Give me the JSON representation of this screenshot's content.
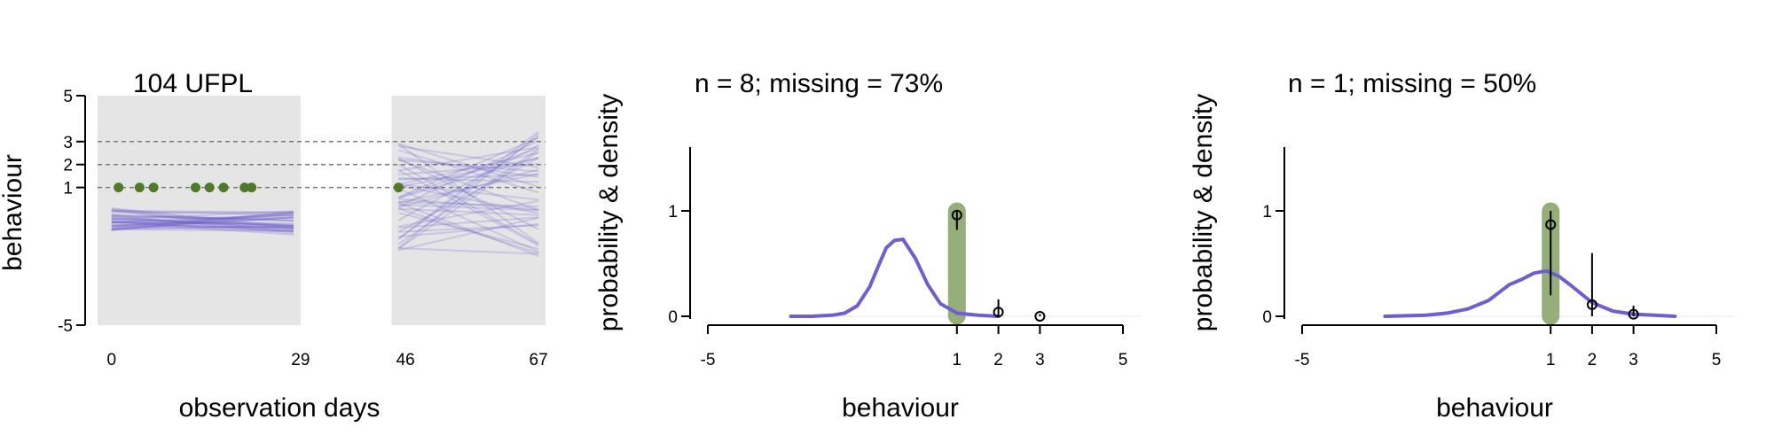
{
  "chart_data": [
    {
      "type": "line",
      "title": "104 UFPL",
      "xlabel": "observation days",
      "ylabel": "behaviour",
      "x_ticks": [
        "0",
        "29",
        "46",
        "67"
      ],
      "y_ticks": [
        "-5",
        "1",
        "2",
        "3",
        "5"
      ],
      "xlim": [
        -2,
        62
      ],
      "ylim": [
        -5,
        5
      ],
      "reference_lines": [
        1,
        2,
        3
      ],
      "shaded_periods": [
        [
          -2,
          27
        ],
        [
          40,
          62
        ]
      ],
      "observed_points": {
        "x": [
          1,
          4,
          6,
          12,
          14,
          16,
          19,
          20,
          41
        ],
        "y": [
          1,
          1,
          1,
          1,
          1,
          1,
          1,
          1,
          1
        ]
      },
      "period1_trajectory_range": {
        "x": [
          0,
          26
        ],
        "y_start_range": [
          -0.9,
          0.1
        ],
        "y_end_range": [
          -1.1,
          0.0
        ]
      },
      "period2_trajectory_range": {
        "x": [
          41,
          61
        ],
        "y_start_range": [
          -1.8,
          3.0
        ],
        "y_end_range": [
          -2.0,
          3.5
        ]
      },
      "colors": {
        "trajectories": "#6a5acd",
        "observed": "#4f7a2a",
        "shade": "#e5e5e5"
      }
    },
    {
      "type": "line",
      "title": "n = 8; missing = 73%",
      "xlabel": "behaviour",
      "ylabel": "probability & density",
      "x_ticks": [
        "-5",
        "1",
        "2",
        "3",
        "5"
      ],
      "y_ticks": [
        "0",
        "1"
      ],
      "xlim": [
        -5,
        5
      ],
      "ylim": [
        -0.1,
        1.6
      ],
      "observed_value": 1,
      "density": {
        "x": [
          -3,
          -2.5,
          -2,
          -1.7,
          -1.4,
          -1.1,
          -0.9,
          -0.7,
          -0.5,
          -0.3,
          0,
          0.3,
          0.6,
          1,
          1.5,
          2
        ],
        "y": [
          0,
          0,
          0.01,
          0.03,
          0.1,
          0.28,
          0.47,
          0.65,
          0.72,
          0.73,
          0.55,
          0.3,
          0.12,
          0.03,
          0.01,
          0
        ]
      },
      "probabilities": [
        {
          "x": 1,
          "p": 0.96,
          "lo": 0.82,
          "hi": 1.0
        },
        {
          "x": 2,
          "p": 0.04,
          "lo": 0.0,
          "hi": 0.16
        },
        {
          "x": 3,
          "p": 0.0,
          "lo": 0.0,
          "hi": 0.02
        }
      ],
      "colors": {
        "density": "#6e5fd0",
        "band": "#8aa56b"
      }
    },
    {
      "type": "line",
      "title": "n = 1; missing = 50%",
      "xlabel": "behaviour",
      "ylabel": "probability & density",
      "x_ticks": [
        "-5",
        "1",
        "2",
        "3",
        "5"
      ],
      "y_ticks": [
        "0",
        "1"
      ],
      "xlim": [
        -5,
        5
      ],
      "ylim": [
        -0.1,
        1.6
      ],
      "observed_value": 1,
      "density": {
        "x": [
          -3,
          -2,
          -1.5,
          -1,
          -0.5,
          0,
          0.3,
          0.6,
          0.9,
          1.2,
          1.5,
          2,
          2.5,
          3,
          3.5,
          4
        ],
        "y": [
          0,
          0.01,
          0.03,
          0.07,
          0.15,
          0.3,
          0.35,
          0.41,
          0.43,
          0.38,
          0.29,
          0.13,
          0.05,
          0.02,
          0.01,
          0
        ]
      },
      "probabilities": [
        {
          "x": 1,
          "p": 0.87,
          "lo": 0.2,
          "hi": 1.0
        },
        {
          "x": 2,
          "p": 0.11,
          "lo": 0.0,
          "hi": 0.6
        },
        {
          "x": 3,
          "p": 0.02,
          "lo": 0.0,
          "hi": 0.1
        }
      ],
      "colors": {
        "density": "#6e5fd0",
        "band": "#8aa56b"
      }
    }
  ]
}
